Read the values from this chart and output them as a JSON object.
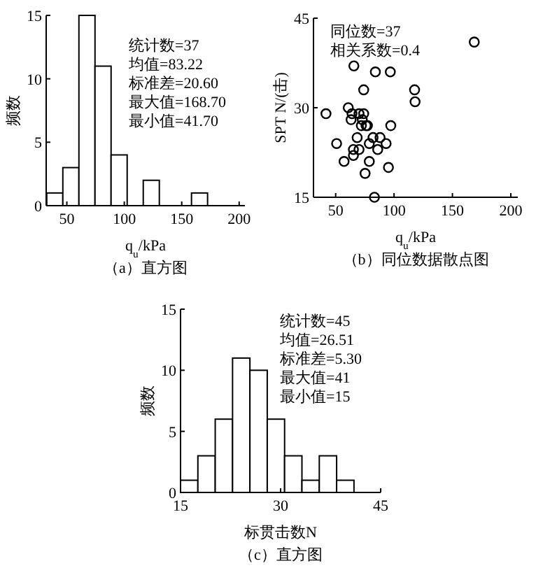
{
  "chart_data": [
    {
      "type": "histogram",
      "title": "（a）直方图",
      "xlabel": "q$_{u}$/kPa",
      "ylabel": "频数",
      "bins": [
        32.5,
        46.5,
        60.5,
        74.5,
        88.5,
        102.5,
        116.5,
        130.5,
        144.5,
        158.5,
        172.5
      ],
      "values": [
        1,
        3,
        15,
        11,
        4,
        0,
        2,
        0,
        0,
        1
      ],
      "color": "#000000",
      "xlim": [
        32,
        205
      ],
      "xticks": [
        50,
        100,
        150,
        200
      ],
      "ylim": [
        0,
        15
      ],
      "yticks": [
        0,
        5,
        10,
        15
      ],
      "annotations": [
        "统计数=37",
        "均值=83.22",
        "标准差=20.60",
        "最大值=168.70",
        "最小值=41.70"
      ]
    },
    {
      "type": "scatter",
      "title": "（b）同位数据散点图",
      "xlabel": "q$_{u}$/kPa",
      "ylabel": "SPT N/(击)",
      "marker": "circle",
      "color": "#000000",
      "x": [
        168.7,
        65.6,
        84,
        96.8,
        74,
        117.6,
        118,
        41.7,
        60.8,
        64,
        70,
        74,
        63.2,
        72.8,
        72,
        76,
        77.2,
        97.2,
        68.4,
        82,
        88,
        50.8,
        78.8,
        93.2,
        65.2,
        70,
        86,
        65.2,
        57.2,
        78.8,
        95.2,
        75.2,
        83.2
      ],
      "values": [
        41,
        37,
        36,
        36,
        33,
        33,
        31,
        29,
        30,
        29,
        29,
        29,
        28,
        28,
        27,
        27,
        27,
        27,
        25,
        25,
        25,
        24,
        24,
        24,
        23,
        23,
        23,
        22,
        21,
        21,
        20,
        19,
        15
      ],
      "xlim": [
        31,
        206
      ],
      "xticks": [
        50,
        100,
        150,
        200
      ],
      "ylim": [
        15,
        45
      ],
      "yticks": [
        15,
        30,
        45
      ],
      "annotations": [
        "同位数=37",
        "相关系数=0.4"
      ]
    },
    {
      "type": "histogram",
      "title": "（c）直方图",
      "xlabel": "标贯击数N",
      "ylabel": "频数",
      "bins": [
        15,
        17.6,
        20.2,
        22.8,
        25.4,
        28,
        30.6,
        33.2,
        35.8,
        38.4,
        41
      ],
      "values": [
        1,
        3,
        6,
        11,
        10,
        6,
        3,
        1,
        3,
        1
      ],
      "color": "#000000",
      "xlim": [
        15,
        45
      ],
      "xticks": [
        15,
        30,
        45
      ],
      "ylim": [
        0,
        15
      ],
      "yticks": [
        0,
        5,
        10,
        15
      ],
      "annotations": [
        "统计数=45",
        "均值=26.51",
        "标准差=5.30",
        "最大值=41",
        "最小值=15"
      ]
    }
  ]
}
